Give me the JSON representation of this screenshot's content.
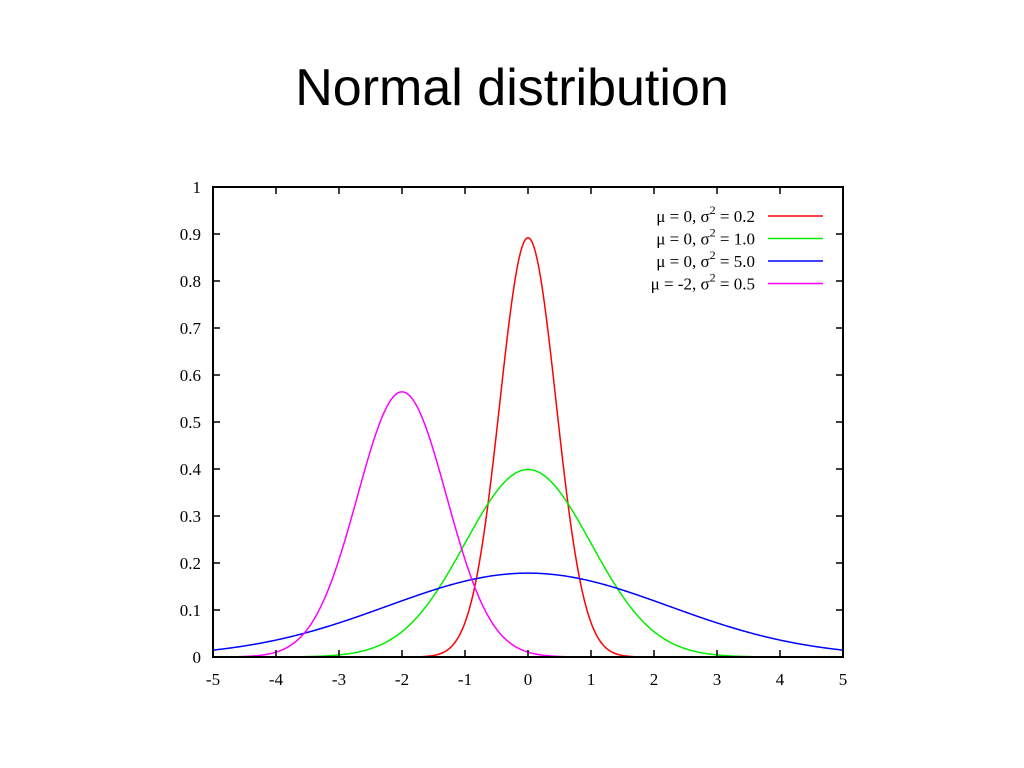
{
  "slide": {
    "title": "Normal distribution"
  },
  "chart_data": {
    "type": "line",
    "title": "",
    "xlabel": "",
    "ylabel": "",
    "xlim": [
      -5,
      5
    ],
    "ylim": [
      0,
      1
    ],
    "x_ticks": [
      "-5",
      "-4",
      "-3",
      "-2",
      "-1",
      "0",
      "1",
      "2",
      "3",
      "4",
      "5"
    ],
    "y_ticks": [
      "0",
      "0.1",
      "0.2",
      "0.3",
      "0.4",
      "0.5",
      "0.6",
      "0.7",
      "0.8",
      "0.9",
      "1"
    ],
    "grid": false,
    "legend_position": "top-right",
    "series": [
      {
        "legend_mu": "μ =  0,",
        "legend_sigma": "σ",
        "legend_sup": "2",
        "legend_value": "= 0.2",
        "mu": 0,
        "variance": 0.2,
        "color": "#ff0000"
      },
      {
        "legend_mu": "μ =  0,",
        "legend_sigma": "σ",
        "legend_sup": "2",
        "legend_value": "= 1.0",
        "mu": 0,
        "variance": 1.0,
        "color": "#00ee00"
      },
      {
        "legend_mu": "μ =  0,",
        "legend_sigma": "σ",
        "legend_sup": "2",
        "legend_value": "= 5.0",
        "mu": 0,
        "variance": 5.0,
        "color": "#0000ff"
      },
      {
        "legend_mu": "μ = -2,",
        "legend_sigma": "σ",
        "legend_sup": "2",
        "legend_value": "= 0.5",
        "mu": -2,
        "variance": 0.5,
        "color": "#ff00ff"
      }
    ]
  }
}
